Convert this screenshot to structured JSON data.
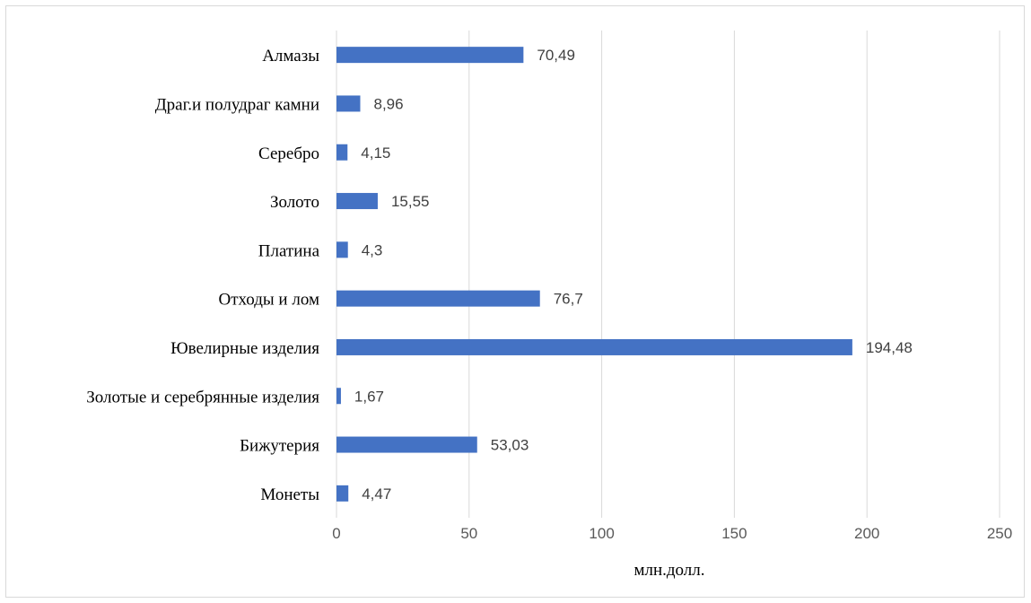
{
  "chart_data": {
    "type": "bar",
    "orientation": "horizontal",
    "categories": [
      "Алмазы",
      "Драг.и полудраг камни",
      "Серебро",
      "Золото",
      "Платина",
      "Отходы и лом",
      "Ювелирные изделия",
      "Золотые и серебрянные изделия",
      "Бижутерия",
      "Монеты"
    ],
    "values": [
      70.49,
      8.96,
      4.15,
      15.55,
      4.3,
      76.7,
      194.48,
      1.67,
      53.03,
      4.47
    ],
    "value_labels": [
      "70,49",
      "8,96",
      "4,15",
      "15,55",
      "4,3",
      "76,7",
      "194,48",
      "1,67",
      "53,03",
      "4,47"
    ],
    "xticks": [
      "0",
      "50",
      "100",
      "150",
      "200",
      "250"
    ],
    "xlim": [
      0,
      250
    ],
    "xlabel": "млн.долл.",
    "ylabel": "",
    "title": "",
    "grid": true,
    "bar_color": "#4472c4"
  }
}
